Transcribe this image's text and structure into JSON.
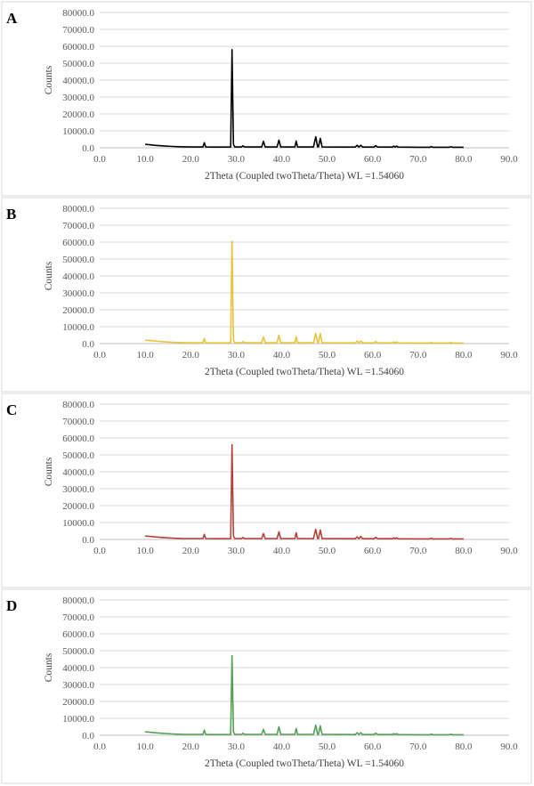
{
  "chart_data": [
    {
      "panel_label": "A",
      "type": "line",
      "title": "",
      "xlabel": "2Theta (Coupled twoTheta/Theta) WL =1.54060",
      "ylabel": "Counts",
      "xlim": [
        0,
        90
      ],
      "ylim": [
        0,
        80000
      ],
      "x_ticks": [
        "0.0",
        "10.0",
        "20.0",
        "30.0",
        "40.0",
        "50.0",
        "60.0",
        "70.0",
        "80.0",
        "90.0"
      ],
      "y_ticks": [
        "0.0",
        "10000.0",
        "20000.0",
        "30000.0",
        "40000.0",
        "50000.0",
        "60000.0",
        "70000.0",
        "80000.0"
      ],
      "grid": true,
      "color": "#000000",
      "series": [
        {
          "x": [
            10,
            11,
            12,
            14,
            16,
            18,
            20,
            22,
            22.7,
            23.0,
            23.3,
            25,
            27,
            28.8,
            29.1,
            29.4,
            29.7,
            30,
            31.2,
            31.5,
            31.8,
            35.6,
            36.0,
            36.4,
            39.0,
            39.4,
            39.8,
            42.9,
            43.2,
            43.5,
            47.0,
            47.5,
            47.9,
            48.1,
            48.5,
            48.9,
            56.2,
            56.6,
            57.0,
            57.4,
            57.8,
            60.3,
            60.7,
            61.1,
            64.4,
            64.7,
            65.0,
            65.3,
            65.6,
            70,
            72.6,
            72.9,
            73.2,
            76.8,
            77.2,
            77.6,
            80
          ],
          "y": [
            2000,
            1800,
            1500,
            1100,
            800,
            600,
            500,
            500,
            500,
            3000,
            500,
            400,
            400,
            500,
            58000,
            2000,
            500,
            500,
            500,
            1200,
            500,
            500,
            3800,
            500,
            500,
            4500,
            500,
            500,
            4000,
            500,
            500,
            6500,
            600,
            600,
            5600,
            500,
            400,
            1500,
            400,
            1500,
            400,
            400,
            1200,
            400,
            400,
            1000,
            400,
            1000,
            400,
            300,
            300,
            800,
            300,
            300,
            600,
            300,
            300
          ]
        }
      ]
    },
    {
      "panel_label": "B",
      "type": "line",
      "title": "",
      "xlabel": "2Theta (Coupled twoTheta/Theta) WL =1.54060",
      "ylabel": "Counts",
      "xlim": [
        0,
        90
      ],
      "ylim": [
        0,
        80000
      ],
      "x_ticks": [
        "0.0",
        "10.0",
        "20.0",
        "30.0",
        "40.0",
        "50.0",
        "60.0",
        "70.0",
        "80.0",
        "90.0"
      ],
      "y_ticks": [
        "0.0",
        "10000.0",
        "20000.0",
        "30000.0",
        "40000.0",
        "50000.0",
        "60000.0",
        "70000.0",
        "80000.0"
      ],
      "grid": true,
      "color": "#e8c43a",
      "series": [
        {
          "x": [
            10,
            11,
            12,
            14,
            16,
            18,
            20,
            22,
            22.7,
            23.0,
            23.3,
            25,
            27,
            28.8,
            29.1,
            29.4,
            29.7,
            30,
            31.2,
            31.5,
            31.8,
            35.6,
            36.0,
            36.4,
            39.0,
            39.4,
            39.8,
            42.9,
            43.2,
            43.5,
            47.0,
            47.5,
            47.9,
            48.1,
            48.5,
            48.9,
            56.2,
            56.6,
            57.0,
            57.4,
            57.8,
            60.3,
            60.7,
            61.1,
            64.4,
            64.7,
            65.0,
            65.3,
            65.6,
            70,
            72.6,
            72.9,
            73.2,
            76.8,
            77.2,
            77.6,
            80
          ],
          "y": [
            2000,
            1800,
            1500,
            1100,
            800,
            600,
            500,
            500,
            500,
            3000,
            500,
            400,
            400,
            500,
            60500,
            2000,
            500,
            500,
            500,
            1200,
            500,
            500,
            4000,
            500,
            500,
            5000,
            500,
            500,
            4000,
            500,
            500,
            6000,
            600,
            600,
            6000,
            500,
            400,
            1500,
            400,
            1500,
            400,
            400,
            1200,
            400,
            400,
            1000,
            400,
            1000,
            400,
            300,
            300,
            800,
            300,
            300,
            600,
            300,
            300
          ]
        }
      ]
    },
    {
      "panel_label": "C",
      "type": "line",
      "title": "",
      "xlabel": "",
      "ylabel": "Counts",
      "xlim": [
        0,
        90
      ],
      "ylim": [
        0,
        80000
      ],
      "x_ticks": [
        "0.0",
        "10.0",
        "20.0",
        "30.0",
        "40.0",
        "50.0",
        "60.0",
        "70.0",
        "80.0",
        "90.0"
      ],
      "y_ticks": [
        "0.0",
        "10000.0",
        "20000.0",
        "30000.0",
        "40000.0",
        "50000.0",
        "60000.0",
        "70000.0",
        "80000.0"
      ],
      "grid": true,
      "color": "#b5403a",
      "series": [
        {
          "x": [
            10,
            11,
            12,
            14,
            16,
            18,
            20,
            22,
            22.7,
            23.0,
            23.3,
            25,
            27,
            28.8,
            29.1,
            29.4,
            29.7,
            30,
            31.2,
            31.5,
            31.8,
            35.6,
            36.0,
            36.4,
            39.0,
            39.4,
            39.8,
            42.9,
            43.2,
            43.5,
            47.0,
            47.5,
            47.9,
            48.1,
            48.5,
            48.9,
            56.2,
            56.6,
            57.0,
            57.4,
            57.8,
            60.3,
            60.7,
            61.1,
            64.4,
            64.7,
            65.0,
            65.3,
            65.6,
            70,
            72.6,
            72.9,
            73.2,
            76.8,
            77.2,
            77.6,
            80
          ],
          "y": [
            2000,
            1800,
            1500,
            1100,
            800,
            600,
            500,
            500,
            500,
            3000,
            500,
            400,
            400,
            500,
            56000,
            2000,
            500,
            500,
            500,
            1200,
            500,
            500,
            3500,
            500,
            500,
            4500,
            500,
            500,
            4000,
            500,
            500,
            6000,
            600,
            600,
            5500,
            500,
            400,
            1500,
            400,
            1800,
            400,
            400,
            1200,
            400,
            400,
            1000,
            400,
            1000,
            400,
            300,
            300,
            800,
            300,
            300,
            600,
            300,
            300
          ]
        }
      ]
    },
    {
      "panel_label": "D",
      "type": "line",
      "title": "",
      "xlabel": "2Theta (Coupled twoTheta/Theta) WL =1.54060",
      "ylabel": "Counts",
      "xlim": [
        0,
        90
      ],
      "ylim": [
        0,
        80000
      ],
      "x_ticks": [
        "0.0",
        "10.0",
        "20.0",
        "30.0",
        "40.0",
        "50.0",
        "60.0",
        "70.0",
        "80.0",
        "90.0"
      ],
      "y_ticks": [
        "0.0",
        "10000.0",
        "20000.0",
        "30000.0",
        "40000.0",
        "50000.0",
        "60000.0",
        "70000.0",
        "80000.0"
      ],
      "grid": true,
      "color": "#55a055",
      "series": [
        {
          "x": [
            10,
            11,
            12,
            14,
            16,
            18,
            20,
            22,
            22.7,
            23.0,
            23.3,
            25,
            27,
            28.8,
            29.1,
            29.4,
            29.7,
            30,
            31.2,
            31.5,
            31.8,
            35.6,
            36.0,
            36.4,
            39.0,
            39.4,
            39.8,
            42.9,
            43.2,
            43.5,
            47.0,
            47.5,
            47.9,
            48.1,
            48.5,
            48.9,
            56.2,
            56.6,
            57.0,
            57.4,
            57.8,
            60.3,
            60.7,
            61.1,
            64.4,
            64.7,
            65.0,
            65.3,
            65.6,
            70,
            72.6,
            72.9,
            73.2,
            76.8,
            77.2,
            77.6,
            80
          ],
          "y": [
            2000,
            1800,
            1500,
            1100,
            800,
            600,
            500,
            500,
            500,
            3000,
            500,
            400,
            400,
            500,
            47000,
            2000,
            500,
            500,
            500,
            1200,
            500,
            500,
            3500,
            500,
            500,
            5000,
            500,
            500,
            4000,
            500,
            500,
            6000,
            600,
            600,
            5500,
            500,
            400,
            1500,
            400,
            1500,
            400,
            400,
            1200,
            400,
            400,
            1000,
            400,
            1000,
            400,
            300,
            300,
            800,
            300,
            300,
            600,
            300,
            300
          ]
        }
      ]
    }
  ]
}
